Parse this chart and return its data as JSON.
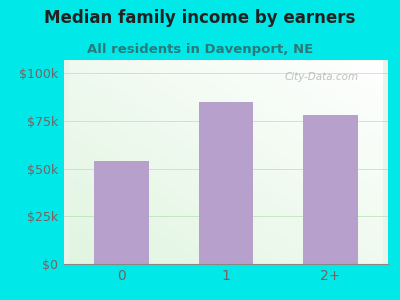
{
  "title": "Median family income by earners",
  "subtitle": "All residents in Davenport, NE",
  "categories": [
    "0",
    "1",
    "2+"
  ],
  "values": [
    54000,
    85000,
    78000
  ],
  "bar_color": "#b8a0cc",
  "background_color": "#00e8e8",
  "plot_bg_color": "#e8f5e8",
  "title_color": "#222222",
  "subtitle_color": "#2a7a7a",
  "tick_color": "#7a6060",
  "ytick_labels": [
    "$0",
    "$25k",
    "$50k",
    "$75k",
    "$100k"
  ],
  "ytick_values": [
    0,
    25000,
    50000,
    75000,
    100000
  ],
  "ylim": [
    0,
    107000
  ],
  "watermark": "City-Data.com",
  "title_fontsize": 12,
  "subtitle_fontsize": 9.5,
  "tick_fontsize": 9,
  "xtick_fontsize": 10
}
